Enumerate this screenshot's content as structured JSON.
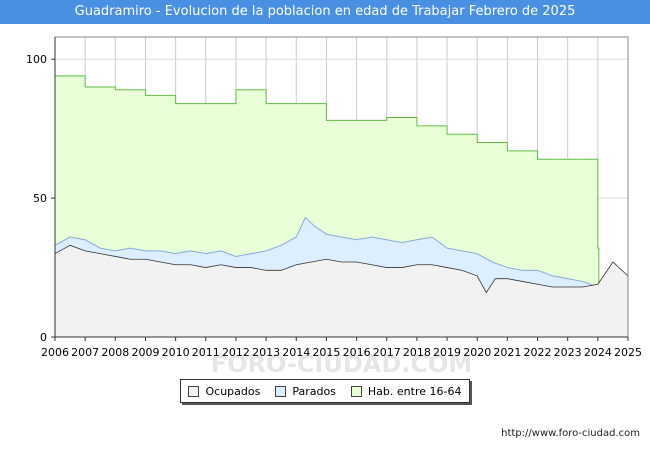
{
  "title": "Guadramiro - Evolucion de la poblacion en edad de Trabajar Febrero de 2025",
  "url": "http://www.foro-ciudad.com",
  "watermark": "FORO-CIUDAD.COM",
  "colors": {
    "title_bg": "#4a90e2",
    "ocupados": "#f2f2f2",
    "parados": "#ddeeff",
    "habitantes": "#e8ffd8",
    "hab_line": "#66bb44",
    "par_line": "#88aadd",
    "ocu_line": "#333333"
  },
  "chart_data": {
    "type": "area",
    "title": "Guadramiro - Evolucion de la poblacion en edad de Trabajar Febrero de 2025",
    "xlim": [
      2006,
      2025
    ],
    "ylim": [
      0,
      108
    ],
    "x_ticks": [
      "2006",
      "2007",
      "2008",
      "2009",
      "2010",
      "2011",
      "2012",
      "2013",
      "2014",
      "2015",
      "2016",
      "2017",
      "2018",
      "2019",
      "2020",
      "2021",
      "2022",
      "2023",
      "2024",
      "2025"
    ],
    "y_ticks": [
      0,
      50,
      100
    ],
    "grid": true,
    "legend": "bottom",
    "series": [
      {
        "name": "Hab. entre 16-64",
        "step": true,
        "x": [
          2006,
          2007,
          2008,
          2009,
          2010,
          2011,
          2012,
          2013,
          2014,
          2015,
          2016,
          2017,
          2018,
          2019,
          2020,
          2021,
          2022,
          2023,
          2024
        ],
        "values": [
          94,
          90,
          89,
          87,
          84,
          84,
          89,
          84,
          84,
          78,
          78,
          79,
          76,
          73,
          70,
          67,
          64,
          64,
          32
        ]
      },
      {
        "name": "Parados",
        "x": [
          2006,
          2006.5,
          2007,
          2007.5,
          2008,
          2008.5,
          2009,
          2009.5,
          2010,
          2010.5,
          2011,
          2011.5,
          2012,
          2012.5,
          2013,
          2013.5,
          2014,
          2014.3,
          2014.6,
          2015,
          2015.5,
          2016,
          2016.5,
          2017,
          2017.5,
          2018,
          2018.5,
          2019,
          2019.5,
          2020,
          2020.5,
          2021,
          2021.5,
          2022,
          2022.5,
          2023,
          2023.5,
          2024
        ],
        "values": [
          33,
          36,
          35,
          32,
          31,
          32,
          31,
          31,
          30,
          31,
          30,
          31,
          29,
          30,
          31,
          33,
          36,
          43,
          40,
          37,
          36,
          35,
          36,
          35,
          34,
          35,
          36,
          32,
          31,
          30,
          27,
          25,
          24,
          24,
          22,
          21,
          20,
          18
        ]
      },
      {
        "name": "Ocupados",
        "x": [
          2006,
          2006.5,
          2007,
          2007.5,
          2008,
          2008.5,
          2009,
          2009.5,
          2010,
          2010.5,
          2011,
          2011.5,
          2012,
          2012.5,
          2013,
          2013.5,
          2014,
          2014.5,
          2015,
          2015.5,
          2016,
          2016.5,
          2017,
          2017.5,
          2018,
          2018.5,
          2019,
          2019.5,
          2020,
          2020.3,
          2020.6,
          2021,
          2021.5,
          2022,
          2022.5,
          2023,
          2023.5,
          2024,
          2024.5,
          2025
        ],
        "values": [
          30,
          33,
          31,
          30,
          29,
          28,
          28,
          27,
          26,
          26,
          25,
          26,
          25,
          25,
          24,
          24,
          26,
          27,
          28,
          27,
          27,
          26,
          25,
          25,
          26,
          26,
          25,
          24,
          22,
          16,
          21,
          21,
          20,
          19,
          18,
          18,
          18,
          19,
          27,
          22
        ]
      }
    ]
  },
  "legend": [
    {
      "label": "Ocupados",
      "color": "#f2f2f2"
    },
    {
      "label": "Parados",
      "color": "#ddeeff"
    },
    {
      "label": "Hab. entre 16-64",
      "color": "#e8ffd8"
    }
  ]
}
